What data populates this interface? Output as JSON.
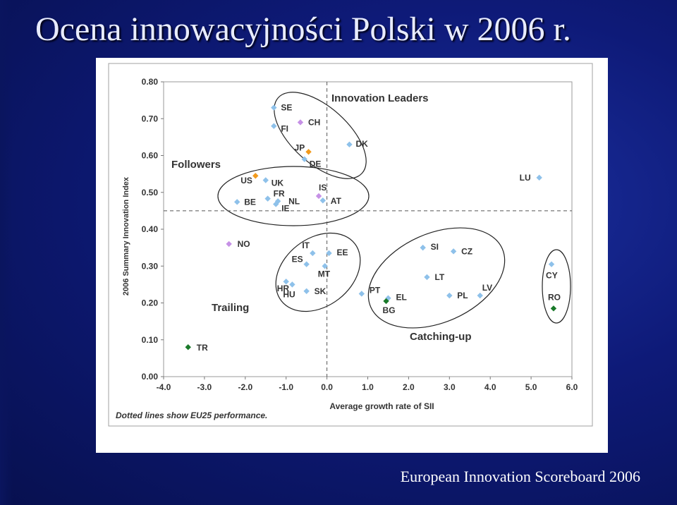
{
  "slide": {
    "title": "Ocena innowacyjności Polski w 2006 r.",
    "footer": "European Innovation Scoreboard 2006"
  },
  "chart_data": {
    "type": "scatter",
    "title": "",
    "xlabel": "Average growth rate of SII",
    "ylabel": "2006 Summary Innovation Index",
    "xlim": [
      -4.0,
      6.0
    ],
    "ylim": [
      0.0,
      0.8
    ],
    "xticks": [
      "-4.0",
      "-3.0",
      "-2.0",
      "-1.0",
      "0.0",
      "1.0",
      "2.0",
      "3.0",
      "4.0",
      "5.0",
      "6.0"
    ],
    "yticks": [
      "0.00",
      "0.10",
      "0.20",
      "0.30",
      "0.40",
      "0.50",
      "0.60",
      "0.70",
      "0.80"
    ],
    "reference_lines": {
      "x": 0.0,
      "y": 0.45,
      "style": "dashed"
    },
    "note": "Dotted lines show EU25 performance.",
    "colors": {
      "default": "#8ec1ea",
      "violet": "#c691e6",
      "orange": "#f29a1c",
      "green": "#1a7a2a"
    },
    "groups": [
      {
        "name": "Innovation Leaders"
      },
      {
        "name": "Followers"
      },
      {
        "name": "Trailing"
      },
      {
        "name": "Catching-up"
      }
    ],
    "points": [
      {
        "label": "SE",
        "x": -1.3,
        "y": 0.73,
        "color": "default"
      },
      {
        "label": "FI",
        "x": -1.3,
        "y": 0.68,
        "color": "default"
      },
      {
        "label": "CH",
        "x": -0.65,
        "y": 0.69,
        "color": "violet"
      },
      {
        "label": "JP",
        "x": -0.45,
        "y": 0.61,
        "color": "orange"
      },
      {
        "label": "DE",
        "x": -0.55,
        "y": 0.59,
        "color": "default"
      },
      {
        "label": "DK",
        "x": 0.55,
        "y": 0.63,
        "color": "default"
      },
      {
        "label": "US",
        "x": -1.75,
        "y": 0.545,
        "color": "orange"
      },
      {
        "label": "UK",
        "x": -1.5,
        "y": 0.533,
        "color": "default"
      },
      {
        "label": "FR",
        "x": -1.45,
        "y": 0.483,
        "color": "default"
      },
      {
        "label": "BE",
        "x": -2.2,
        "y": 0.474,
        "color": "default"
      },
      {
        "label": "NL",
        "x": -1.2,
        "y": 0.476,
        "color": "default"
      },
      {
        "label": "IE",
        "x": -1.25,
        "y": 0.468,
        "color": "default"
      },
      {
        "label": "IS",
        "x": -0.2,
        "y": 0.49,
        "color": "violet"
      },
      {
        "label": "AT",
        "x": -0.1,
        "y": 0.478,
        "color": "default"
      },
      {
        "label": "LU",
        "x": 5.2,
        "y": 0.54,
        "color": "default"
      },
      {
        "label": "NO",
        "x": -2.4,
        "y": 0.36,
        "color": "violet"
      },
      {
        "label": "IT",
        "x": -0.35,
        "y": 0.335,
        "color": "default"
      },
      {
        "label": "EE",
        "x": 0.05,
        "y": 0.335,
        "color": "default"
      },
      {
        "label": "ES",
        "x": -0.5,
        "y": 0.305,
        "color": "default"
      },
      {
        "label": "MT",
        "x": -0.05,
        "y": 0.3,
        "color": "default"
      },
      {
        "label": "HU",
        "x": -0.85,
        "y": 0.25,
        "color": "default"
      },
      {
        "label": "HR",
        "x": -1.0,
        "y": 0.258,
        "color": "default"
      },
      {
        "label": "SK",
        "x": -0.5,
        "y": 0.232,
        "color": "default"
      },
      {
        "label": "SI",
        "x": 2.35,
        "y": 0.35,
        "color": "default"
      },
      {
        "label": "CZ",
        "x": 3.1,
        "y": 0.34,
        "color": "default"
      },
      {
        "label": "LT",
        "x": 2.45,
        "y": 0.27,
        "color": "default"
      },
      {
        "label": "PT",
        "x": 0.85,
        "y": 0.225,
        "color": "default"
      },
      {
        "label": "EL",
        "x": 1.5,
        "y": 0.213,
        "color": "default"
      },
      {
        "label": "BG",
        "x": 1.45,
        "y": 0.205,
        "color": "green"
      },
      {
        "label": "PL",
        "x": 3.0,
        "y": 0.22,
        "color": "default"
      },
      {
        "label": "LV",
        "x": 3.75,
        "y": 0.22,
        "color": "default"
      },
      {
        "label": "CY",
        "x": 5.5,
        "y": 0.305,
        "color": "default"
      },
      {
        "label": "RO",
        "x": 5.55,
        "y": 0.185,
        "color": "green"
      },
      {
        "label": "TR",
        "x": -3.4,
        "y": 0.08,
        "color": "green"
      }
    ]
  }
}
